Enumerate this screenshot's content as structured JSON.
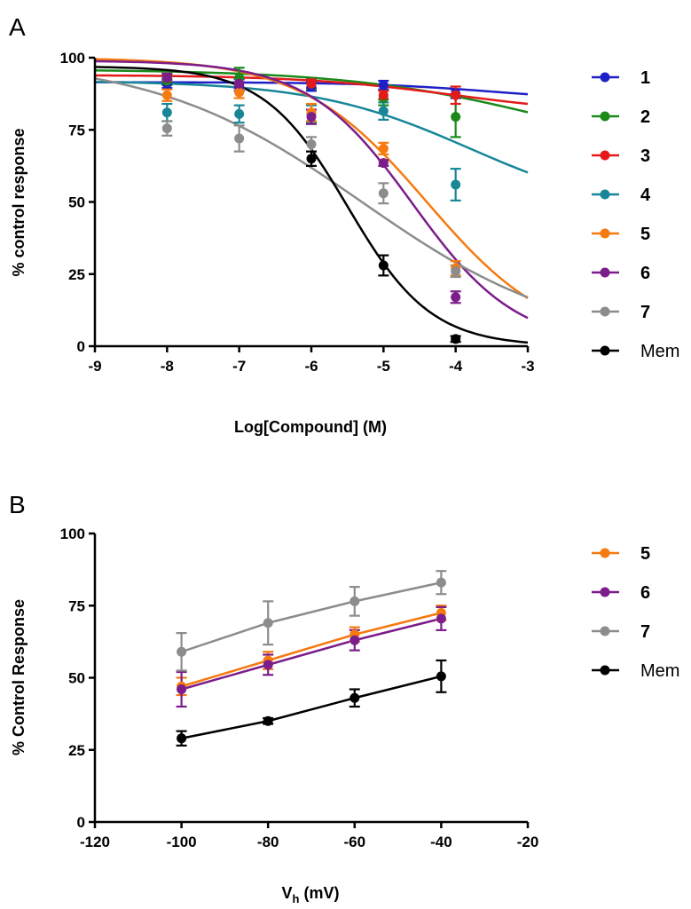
{
  "chart_data": [
    {
      "type": "scatter",
      "panel_label": "A",
      "title": "",
      "xlabel": "Log[Compound] (M)",
      "ylabel": "% control response",
      "xlim": [
        -9,
        -3
      ],
      "ylim": [
        0,
        100
      ],
      "x_ticks": [
        -9,
        -8,
        -7,
        -6,
        -5,
        -4,
        -3
      ],
      "y_ticks": [
        0,
        25,
        50,
        75,
        100
      ],
      "grid": false,
      "legend_position": "right",
      "fit": "dose-response",
      "series": [
        {
          "name": "1",
          "color": "#1f1fc8",
          "x": [
            -8,
            -7,
            -6,
            -5,
            -4
          ],
          "y": [
            91,
            90,
            90,
            90.5,
            87.5
          ],
          "err": [
            1.5,
            1.5,
            1.5,
            1.5,
            1.5
          ],
          "curve": {
            "top": 91.5,
            "bottom": 85,
            "logIC50": -3.5,
            "hill": 0.5
          }
        },
        {
          "name": "2",
          "color": "#1a8a1a",
          "x": [
            -8,
            -7,
            -6,
            -5,
            -4
          ],
          "y": [
            92,
            93,
            91,
            86,
            79.5
          ],
          "err": [
            1.5,
            3.5,
            2,
            2.5,
            7
          ],
          "curve": {
            "top": 96,
            "bottom": 60,
            "logIC50": -2.5,
            "hill": 0.3
          }
        },
        {
          "name": "3",
          "color": "#e41a1a",
          "x": [
            -8,
            -7,
            -6,
            -5,
            -4
          ],
          "y": [
            93,
            91,
            91,
            87,
            87
          ],
          "err": [
            1.2,
            1.5,
            1.5,
            1.5,
            3
          ],
          "curve": {
            "top": 94,
            "bottom": 80,
            "logIC50": -4.0,
            "hill": 0.4
          }
        },
        {
          "name": "4",
          "color": "#178798",
          "x": [
            -8,
            -7,
            -6,
            -5,
            -4
          ],
          "y": [
            81,
            80.5,
            80.5,
            81.5,
            56
          ],
          "err": [
            3,
            3,
            3,
            3,
            5.5
          ],
          "curve": {
            "top": 92,
            "bottom": 45,
            "logIC50": -3.8,
            "hill": 0.4
          }
        },
        {
          "name": "5",
          "color": "#f57a10",
          "x": [
            -8,
            -7,
            -6,
            -5,
            -4
          ],
          "y": [
            87,
            88,
            81,
            68.5,
            27
          ],
          "err": [
            2,
            2,
            3,
            2,
            2.5
          ],
          "curve": {
            "top": 100,
            "bottom": 0,
            "logIC50": -4.4,
            "hill": 0.5
          }
        },
        {
          "name": "6",
          "color": "#7b1d8a",
          "x": [
            -8,
            -7,
            -6,
            -5,
            -4
          ],
          "y": [
            93,
            91,
            79.5,
            63.5,
            17
          ],
          "err": [
            1.5,
            1.5,
            2.5,
            1,
            2
          ],
          "curve": {
            "top": 99,
            "bottom": 0,
            "logIC50": -4.6,
            "hill": 0.6
          }
        },
        {
          "name": "7",
          "color": "#8c8c8c",
          "x": [
            -8,
            -7,
            -6,
            -5,
            -4
          ],
          "y": [
            75.5,
            72,
            70,
            53,
            26
          ],
          "err": [
            2.5,
            4.5,
            2.5,
            3.5,
            2
          ],
          "curve": {
            "top": 100,
            "bottom": 0,
            "logIC50": -5.3,
            "hill": 0.3
          }
        },
        {
          "name": "Mem",
          "color": "#000000",
          "x": [
            -6,
            -5,
            -4
          ],
          "y": [
            65,
            28,
            2.5
          ],
          "err": [
            2.5,
            3.5,
            1
          ],
          "curve": {
            "top": 97,
            "bottom": 0,
            "logIC50": -5.5,
            "hill": 0.75
          }
        }
      ]
    },
    {
      "type": "line",
      "panel_label": "B",
      "title": "",
      "xlabel": "V",
      "xlabel_sub": "h",
      "xlabel_unit": " (mV)",
      "ylabel": "% Control Response",
      "xlim": [
        -120,
        -20
      ],
      "ylim": [
        0,
        100
      ],
      "x_ticks": [
        -120,
        -100,
        -80,
        -60,
        -40,
        -20
      ],
      "y_ticks": [
        0,
        25,
        50,
        75,
        100
      ],
      "grid": false,
      "legend_position": "right",
      "series": [
        {
          "name": "5",
          "color": "#f57a10",
          "x": [
            -100,
            -80,
            -60,
            -40
          ],
          "y": [
            47,
            56,
            65,
            72.5
          ],
          "err": [
            3,
            3,
            2.5,
            2.5
          ]
        },
        {
          "name": "6",
          "color": "#7b1d8a",
          "x": [
            -100,
            -80,
            -60,
            -40
          ],
          "y": [
            46,
            54.5,
            63,
            70.5
          ],
          "err": [
            6,
            3.5,
            3.5,
            4
          ]
        },
        {
          "name": "7",
          "color": "#8c8c8c",
          "x": [
            -100,
            -80,
            -60,
            -40
          ],
          "y": [
            59,
            69,
            76.5,
            83
          ],
          "err": [
            6.5,
            7.5,
            5,
            4
          ]
        },
        {
          "name": "Mem",
          "color": "#000000",
          "x": [
            -100,
            -80,
            -60,
            -40
          ],
          "y": [
            29,
            35,
            43,
            50.5
          ],
          "err": [
            2.5,
            1,
            3,
            5.5
          ]
        }
      ]
    }
  ]
}
